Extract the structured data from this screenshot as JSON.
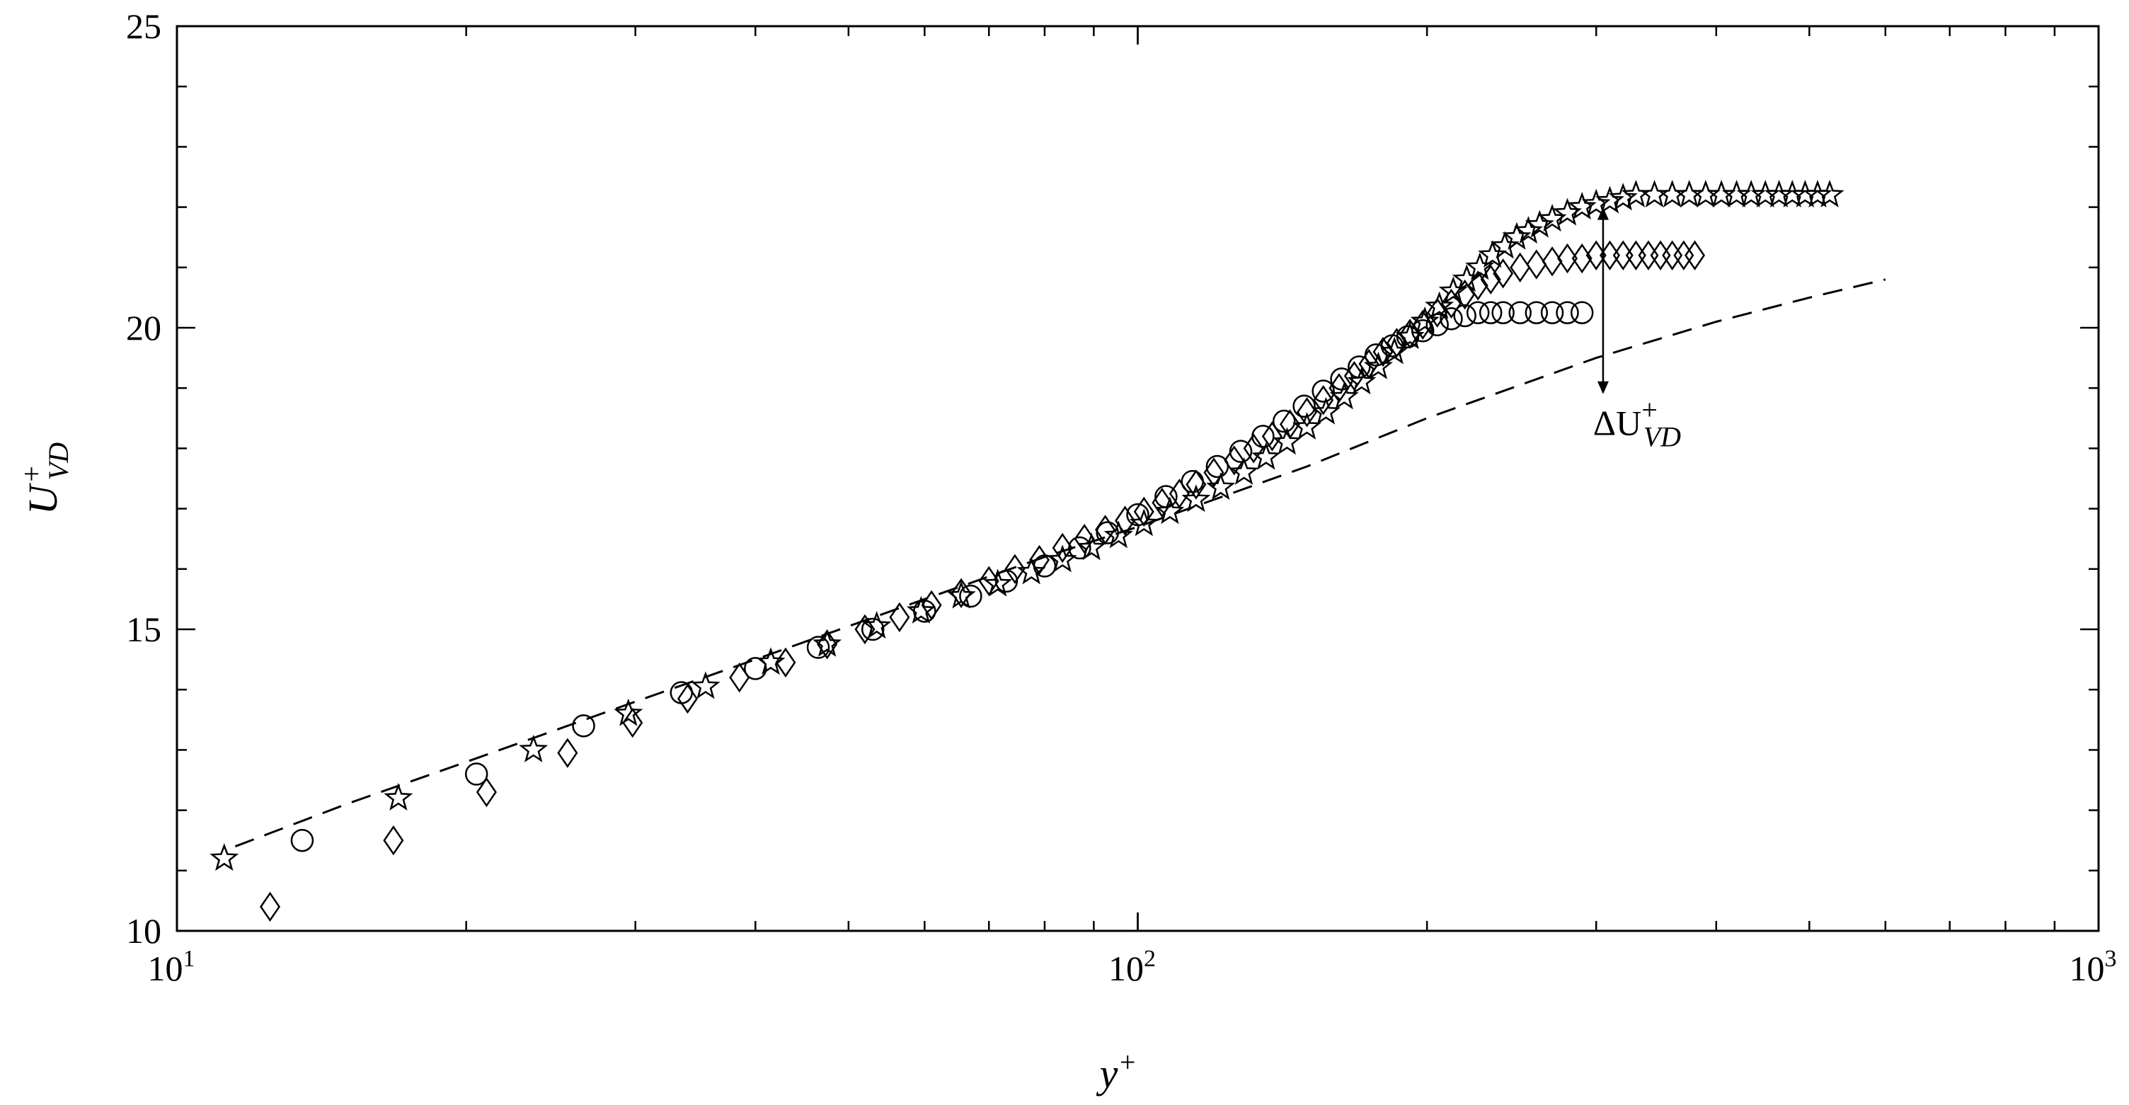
{
  "chart_data": {
    "type": "scatter",
    "title": "",
    "xlabel": "y",
    "xlabel_sup": "+",
    "ylabel": "U",
    "ylabel_sup": "+",
    "ylabel_sub": "VD",
    "xscale": "log",
    "xlim": [
      10,
      1000
    ],
    "ylim": [
      10,
      25
    ],
    "x_ticks": [
      {
        "value": 10,
        "base": "10",
        "exp": "1"
      },
      {
        "value": 100,
        "base": "10",
        "exp": "2"
      },
      {
        "value": 1000,
        "base": "10",
        "exp": "3"
      }
    ],
    "y_ticks": [
      10,
      15,
      20,
      25
    ],
    "grid": false,
    "reference_line": {
      "style": "dashed",
      "x": [
        11.5,
        15,
        20,
        30,
        40,
        60,
        80,
        100,
        150,
        200,
        300,
        400,
        500,
        600
      ],
      "y": [
        11.4,
        12.1,
        12.8,
        13.8,
        14.5,
        15.5,
        16.2,
        16.7,
        17.7,
        18.5,
        19.5,
        20.1,
        20.5,
        20.8
      ]
    },
    "annotation": {
      "text": "ΔU",
      "sup": "+",
      "sub": "VD",
      "x": 305,
      "y_from": 22.0,
      "y_to": 18.9
    },
    "series": [
      {
        "marker": "circle",
        "x": [
          13.5,
          20.5,
          26.5,
          33.5,
          40,
          46.5,
          53,
          60,
          67,
          73,
          80,
          87,
          93,
          100,
          107,
          114,
          121,
          128,
          135,
          142,
          149,
          156,
          163,
          170,
          177,
          184,
          191,
          198,
          205,
          212,
          219,
          226,
          233,
          240,
          250,
          260,
          270,
          280,
          290
        ],
        "y": [
          11.5,
          12.6,
          13.4,
          13.95,
          14.35,
          14.7,
          15.0,
          15.3,
          15.55,
          15.8,
          16.05,
          16.35,
          16.6,
          16.9,
          17.2,
          17.45,
          17.7,
          17.95,
          18.2,
          18.45,
          18.7,
          18.95,
          19.15,
          19.35,
          19.55,
          19.7,
          19.85,
          19.95,
          20.05,
          20.15,
          20.2,
          20.25,
          20.25,
          20.25,
          20.25,
          20.25,
          20.25,
          20.25,
          20.25
        ]
      },
      {
        "marker": "diamond",
        "x": [
          12.5,
          16.8,
          21,
          25.5,
          29.8,
          34,
          38.5,
          43,
          47.5,
          52,
          56.5,
          61,
          65.5,
          70,
          74.5,
          79,
          83.5,
          88,
          92.5,
          97,
          101.5,
          106,
          110.5,
          115,
          120,
          126,
          132,
          138,
          144,
          150,
          156,
          162,
          168,
          174,
          180,
          186,
          192,
          198,
          205,
          212,
          219,
          226,
          233,
          240,
          250,
          260,
          270,
          280,
          290,
          300,
          310,
          320,
          330,
          340,
          350,
          360,
          370,
          380
        ],
        "y": [
          10.4,
          11.5,
          12.3,
          12.95,
          13.45,
          13.85,
          14.2,
          14.45,
          14.75,
          15.0,
          15.2,
          15.4,
          15.6,
          15.8,
          16.0,
          16.15,
          16.35,
          16.5,
          16.65,
          16.8,
          16.95,
          17.1,
          17.25,
          17.4,
          17.6,
          17.8,
          18.0,
          18.2,
          18.4,
          18.6,
          18.8,
          19.0,
          19.2,
          19.4,
          19.6,
          19.75,
          19.9,
          20.05,
          20.25,
          20.4,
          20.55,
          20.7,
          20.8,
          20.9,
          21.0,
          21.05,
          21.1,
          21.15,
          21.15,
          21.2,
          21.2,
          21.2,
          21.2,
          21.2,
          21.2,
          21.2,
          21.2,
          21.2
        ]
      },
      {
        "marker": "star",
        "x": [
          11.2,
          17,
          23.5,
          29.5,
          35.5,
          41.5,
          47.5,
          53.5,
          59.5,
          65.5,
          71.5,
          77.5,
          83.5,
          89.5,
          95.5,
          101.5,
          108,
          115,
          122,
          129,
          136,
          143,
          150,
          157,
          164,
          171,
          178,
          185,
          192,
          199,
          206,
          213,
          220,
          227,
          234,
          241,
          248,
          255,
          262,
          270,
          280,
          290,
          300,
          310,
          320,
          330,
          345,
          360,
          375,
          390,
          405,
          420,
          435,
          450,
          465,
          480,
          495,
          510,
          525
        ],
        "y": [
          11.2,
          12.2,
          13.0,
          13.6,
          14.05,
          14.45,
          14.75,
          15.05,
          15.3,
          15.55,
          15.75,
          15.95,
          16.15,
          16.35,
          16.55,
          16.75,
          16.95,
          17.15,
          17.35,
          17.6,
          17.85,
          18.1,
          18.35,
          18.6,
          18.85,
          19.1,
          19.35,
          19.6,
          19.85,
          20.1,
          20.35,
          20.6,
          20.8,
          21.0,
          21.2,
          21.35,
          21.5,
          21.6,
          21.7,
          21.8,
          21.9,
          22.0,
          22.05,
          22.1,
          22.15,
          22.2,
          22.2,
          22.2,
          22.2,
          22.2,
          22.2,
          22.2,
          22.2,
          22.2,
          22.2,
          22.2,
          22.2,
          22.2,
          22.2
        ]
      }
    ]
  }
}
